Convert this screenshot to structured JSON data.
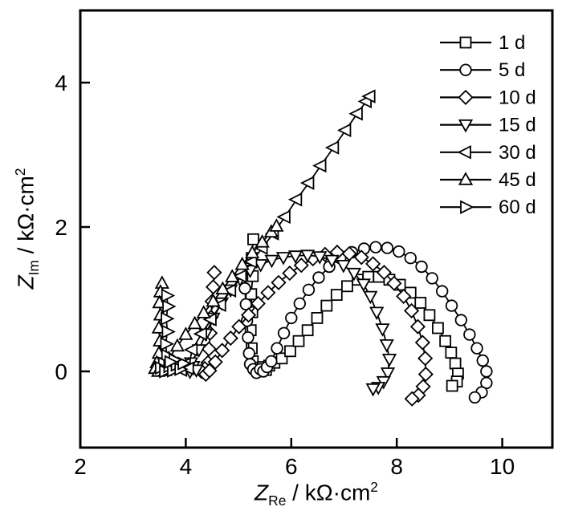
{
  "figure": {
    "background": "#ffffff",
    "frame_color": "#000000",
    "data_color": "#000000",
    "marker_fill": "#ffffff"
  },
  "chart_data": {
    "type": "scatter",
    "title": "",
    "xlabel_parts": {
      "symbol": "Z",
      "subscript": "Re",
      "separator": " / ",
      "unit": "kΩ·cm",
      "exponent": "2"
    },
    "ylabel_parts": {
      "symbol": "Z",
      "subscript": "Im",
      "separator": " / ",
      "unit": "kΩ·cm",
      "exponent": "2"
    },
    "xlim": [
      2,
      10.95
    ],
    "ylim": [
      -1.06,
      5.0
    ],
    "x_ticks": [
      "2",
      "4",
      "6",
      "8",
      "10"
    ],
    "y_ticks": [
      "0",
      "2",
      "4"
    ],
    "grid": false,
    "legend_position": "top-right",
    "series": [
      {
        "name": "1 d",
        "marker": "square",
        "points": [
          [
            5.28,
            1.83
          ],
          [
            5.25,
            1.57
          ],
          [
            5.27,
            1.32
          ],
          [
            5.24,
            1.07
          ],
          [
            5.26,
            0.82
          ],
          [
            5.23,
            0.57
          ],
          [
            5.25,
            0.32
          ],
          [
            5.27,
            0.14
          ],
          [
            5.33,
            0.05
          ],
          [
            5.4,
            0.0
          ],
          [
            5.46,
            0.06
          ],
          [
            5.52,
            0.02
          ],
          [
            5.58,
            0.08
          ],
          [
            5.68,
            0.12
          ],
          [
            5.82,
            0.18
          ],
          [
            5.98,
            0.28
          ],
          [
            6.14,
            0.42
          ],
          [
            6.31,
            0.57
          ],
          [
            6.49,
            0.74
          ],
          [
            6.67,
            0.91
          ],
          [
            6.86,
            1.06
          ],
          [
            7.06,
            1.18
          ],
          [
            7.26,
            1.27
          ],
          [
            7.46,
            1.31
          ],
          [
            7.66,
            1.31
          ],
          [
            7.86,
            1.27
          ],
          [
            8.06,
            1.2
          ],
          [
            8.26,
            1.09
          ],
          [
            8.45,
            0.95
          ],
          [
            8.62,
            0.78
          ],
          [
            8.78,
            0.6
          ],
          [
            8.92,
            0.42
          ],
          [
            9.03,
            0.26
          ],
          [
            9.11,
            0.11
          ],
          [
            9.16,
            -0.03
          ],
          [
            9.14,
            -0.14
          ],
          [
            9.05,
            -0.2
          ]
        ]
      },
      {
        "name": "5 d",
        "marker": "circle",
        "points": [
          [
            5.12,
            1.15
          ],
          [
            5.14,
            0.93
          ],
          [
            5.16,
            0.7
          ],
          [
            5.18,
            0.47
          ],
          [
            5.2,
            0.25
          ],
          [
            5.22,
            0.1
          ],
          [
            5.28,
            0.03
          ],
          [
            5.34,
            -0.02
          ],
          [
            5.41,
            0.03
          ],
          [
            5.47,
            0.0
          ],
          [
            5.54,
            0.06
          ],
          [
            5.62,
            0.14
          ],
          [
            5.73,
            0.32
          ],
          [
            5.86,
            0.53
          ],
          [
            6.0,
            0.74
          ],
          [
            6.16,
            0.94
          ],
          [
            6.33,
            1.13
          ],
          [
            6.52,
            1.3
          ],
          [
            6.72,
            1.45
          ],
          [
            6.93,
            1.57
          ],
          [
            7.15,
            1.65
          ],
          [
            7.38,
            1.7
          ],
          [
            7.6,
            1.72
          ],
          [
            7.82,
            1.71
          ],
          [
            8.04,
            1.66
          ],
          [
            8.26,
            1.57
          ],
          [
            8.47,
            1.45
          ],
          [
            8.67,
            1.29
          ],
          [
            8.86,
            1.11
          ],
          [
            9.04,
            0.91
          ],
          [
            9.22,
            0.71
          ],
          [
            9.38,
            0.51
          ],
          [
            9.52,
            0.32
          ],
          [
            9.63,
            0.15
          ],
          [
            9.7,
            0.0
          ],
          [
            9.7,
            -0.16
          ],
          [
            9.61,
            -0.29
          ],
          [
            9.48,
            -0.36
          ]
        ]
      },
      {
        "name": "10 d",
        "marker": "diamond",
        "points": [
          [
            4.54,
            1.37
          ],
          [
            4.52,
            1.17
          ],
          [
            4.5,
            0.97
          ],
          [
            4.48,
            0.75
          ],
          [
            4.46,
            0.53
          ],
          [
            4.44,
            0.31
          ],
          [
            4.42,
            0.12
          ],
          [
            4.36,
            0.04
          ],
          [
            4.3,
            0.0
          ],
          [
            4.38,
            -0.04
          ],
          [
            4.45,
            0.01
          ],
          [
            4.56,
            0.13
          ],
          [
            4.69,
            0.29
          ],
          [
            4.85,
            0.46
          ],
          [
            5.01,
            0.62
          ],
          [
            5.19,
            0.78
          ],
          [
            5.37,
            0.94
          ],
          [
            5.56,
            1.09
          ],
          [
            5.76,
            1.23
          ],
          [
            5.97,
            1.36
          ],
          [
            6.19,
            1.47
          ],
          [
            6.41,
            1.56
          ],
          [
            6.64,
            1.62
          ],
          [
            6.87,
            1.65
          ],
          [
            7.1,
            1.63
          ],
          [
            7.33,
            1.58
          ],
          [
            7.55,
            1.49
          ],
          [
            7.76,
            1.37
          ],
          [
            7.95,
            1.22
          ],
          [
            8.13,
            1.04
          ],
          [
            8.28,
            0.84
          ],
          [
            8.4,
            0.62
          ],
          [
            8.49,
            0.4
          ],
          [
            8.54,
            0.18
          ],
          [
            8.55,
            -0.04
          ],
          [
            8.5,
            -0.21
          ],
          [
            8.41,
            -0.33
          ],
          [
            8.29,
            -0.38
          ]
        ]
      },
      {
        "name": "15 d",
        "marker": "triangle-down",
        "points": [
          [
            4.02,
            0.06
          ],
          [
            4.08,
            0.0
          ],
          [
            4.14,
            0.07
          ],
          [
            4.2,
            0.02
          ],
          [
            4.1,
            0.12
          ],
          [
            4.25,
            0.3
          ],
          [
            4.38,
            0.52
          ],
          [
            4.52,
            0.74
          ],
          [
            4.68,
            0.95
          ],
          [
            4.85,
            1.13
          ],
          [
            5.03,
            1.28
          ],
          [
            5.22,
            1.4
          ],
          [
            5.42,
            1.48
          ],
          [
            5.63,
            1.54
          ],
          [
            5.85,
            1.58
          ],
          [
            6.08,
            1.6
          ],
          [
            6.31,
            1.61
          ],
          [
            6.54,
            1.59
          ],
          [
            6.77,
            1.54
          ],
          [
            6.99,
            1.47
          ],
          [
            7.19,
            1.36
          ],
          [
            7.37,
            1.21
          ],
          [
            7.5,
            1.04
          ],
          [
            7.62,
            0.82
          ],
          [
            7.73,
            0.59
          ],
          [
            7.81,
            0.37
          ],
          [
            7.86,
            0.17
          ],
          [
            7.83,
            -0.02
          ],
          [
            7.75,
            -0.14
          ],
          [
            7.65,
            -0.22
          ],
          [
            7.55,
            -0.24
          ]
        ]
      },
      {
        "name": "30 d",
        "marker": "triangle-left",
        "points": [
          [
            3.85,
            0.08
          ],
          [
            3.92,
            0.02
          ],
          [
            3.99,
            0.1
          ],
          [
            4.05,
            0.04
          ],
          [
            4.12,
            0.3
          ],
          [
            4.3,
            0.52
          ],
          [
            4.48,
            0.72
          ],
          [
            4.66,
            0.92
          ],
          [
            4.85,
            1.12
          ],
          [
            5.05,
            1.32
          ],
          [
            5.25,
            1.52
          ],
          [
            5.45,
            1.71
          ],
          [
            5.66,
            1.91
          ],
          [
            5.88,
            2.14
          ],
          [
            6.1,
            2.38
          ],
          [
            6.33,
            2.61
          ],
          [
            6.56,
            2.85
          ],
          [
            6.8,
            3.1
          ],
          [
            7.03,
            3.34
          ],
          [
            7.25,
            3.57
          ],
          [
            7.42,
            3.74
          ],
          [
            7.49,
            3.81
          ]
        ]
      },
      {
        "name": "45 d",
        "marker": "triangle-up",
        "points": [
          [
            3.55,
            1.22
          ],
          [
            3.52,
            1.1
          ],
          [
            3.5,
            0.95
          ],
          [
            3.52,
            0.78
          ],
          [
            3.49,
            0.6
          ],
          [
            3.51,
            0.42
          ],
          [
            3.49,
            0.25
          ],
          [
            3.45,
            0.12
          ],
          [
            3.42,
            0.04
          ],
          [
            3.48,
            0.0
          ],
          [
            3.55,
            0.06
          ],
          [
            3.61,
            0.01
          ],
          [
            3.68,
            0.18
          ],
          [
            3.84,
            0.35
          ],
          [
            4.0,
            0.51
          ],
          [
            4.17,
            0.66
          ],
          [
            4.34,
            0.81
          ],
          [
            4.52,
            0.97
          ],
          [
            4.7,
            1.14
          ],
          [
            4.88,
            1.31
          ],
          [
            5.07,
            1.48
          ],
          [
            5.26,
            1.64
          ],
          [
            5.45,
            1.79
          ],
          [
            5.62,
            1.93
          ],
          [
            5.72,
            2.01
          ]
        ]
      },
      {
        "name": "60 d",
        "marker": "triangle-right",
        "points": [
          [
            3.64,
            1.05
          ],
          [
            3.66,
            0.9
          ],
          [
            3.63,
            0.73
          ],
          [
            3.65,
            0.55
          ],
          [
            3.62,
            0.38
          ],
          [
            3.64,
            0.22
          ],
          [
            3.58,
            0.11
          ],
          [
            3.52,
            0.05
          ],
          [
            3.6,
            0.0
          ],
          [
            3.68,
            0.07
          ],
          [
            3.75,
            0.01
          ],
          [
            3.82,
            0.09
          ],
          [
            3.89,
            0.03
          ],
          [
            3.95,
            0.11
          ],
          [
            3.78,
            0.16
          ],
          [
            3.7,
            0.13
          ]
        ]
      }
    ]
  }
}
